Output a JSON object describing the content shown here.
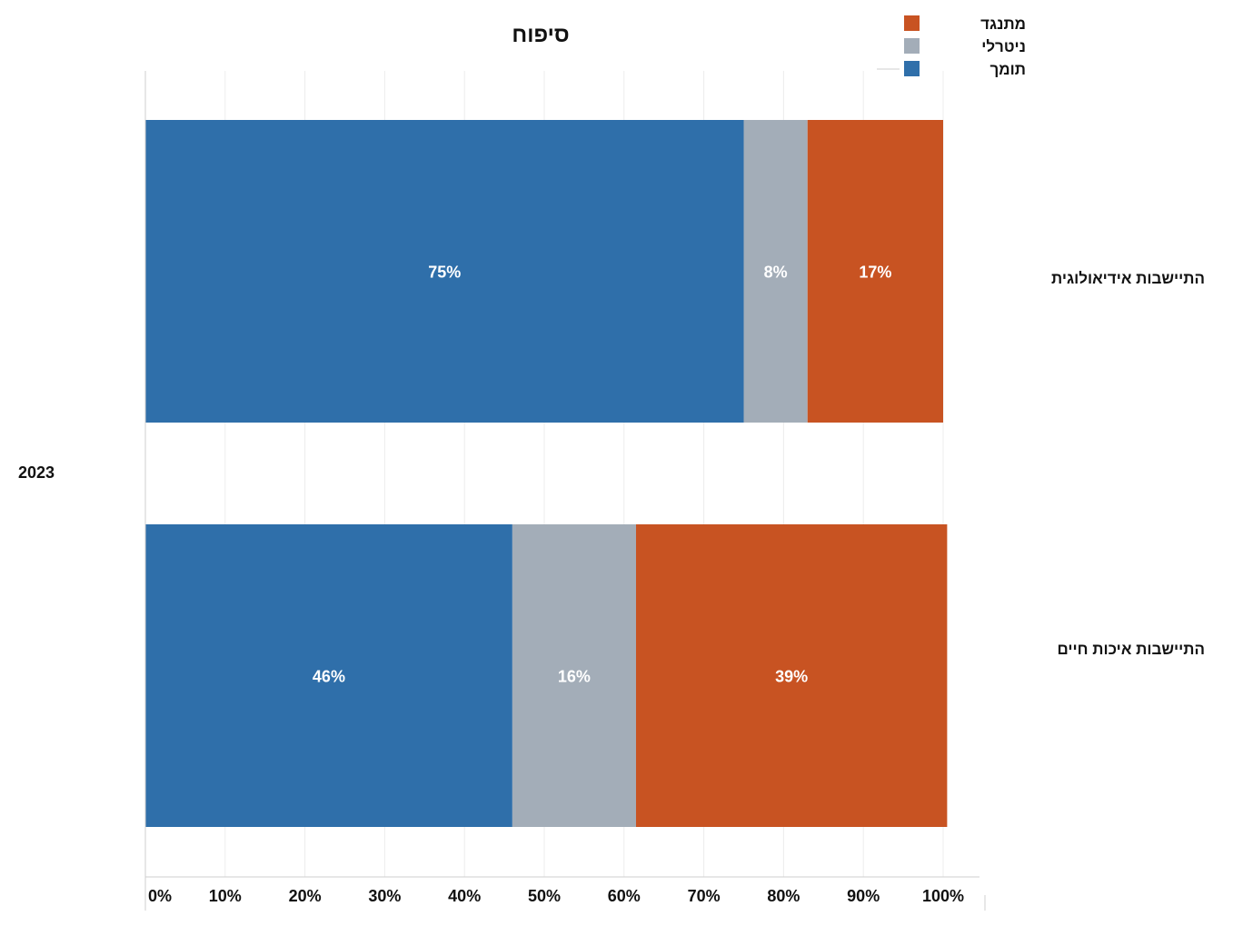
{
  "chart_data": {
    "type": "bar",
    "orientation": "horizontal",
    "stacked": true,
    "title": "סיפוח",
    "group_label": "2023",
    "categories": [
      "התיישבות אידיאולוגית",
      "התיישבות איכות חיים"
    ],
    "series": [
      {
        "name": "תומך",
        "color": "#2f6faa",
        "values": [
          75,
          46
        ],
        "labels": [
          "75%",
          "46%"
        ]
      },
      {
        "name": "ניטרלי",
        "color": "#a3adb8",
        "values": [
          8,
          15.5
        ],
        "labels": [
          "8%",
          "16%"
        ]
      },
      {
        "name": "מתנגד",
        "color": "#c85322",
        "values": [
          17,
          39
        ],
        "labels": [
          "17%",
          "39%"
        ]
      }
    ],
    "legend_order": [
      "מתנגד",
      "ניטרלי",
      "תומך"
    ],
    "legend_position": "top-right",
    "xlim": [
      0,
      100
    ],
    "x_ticks": [
      "0%",
      "10%",
      "20%",
      "30%",
      "40%",
      "50%",
      "60%",
      "70%",
      "80%",
      "90%",
      "100%"
    ],
    "grid": true
  }
}
